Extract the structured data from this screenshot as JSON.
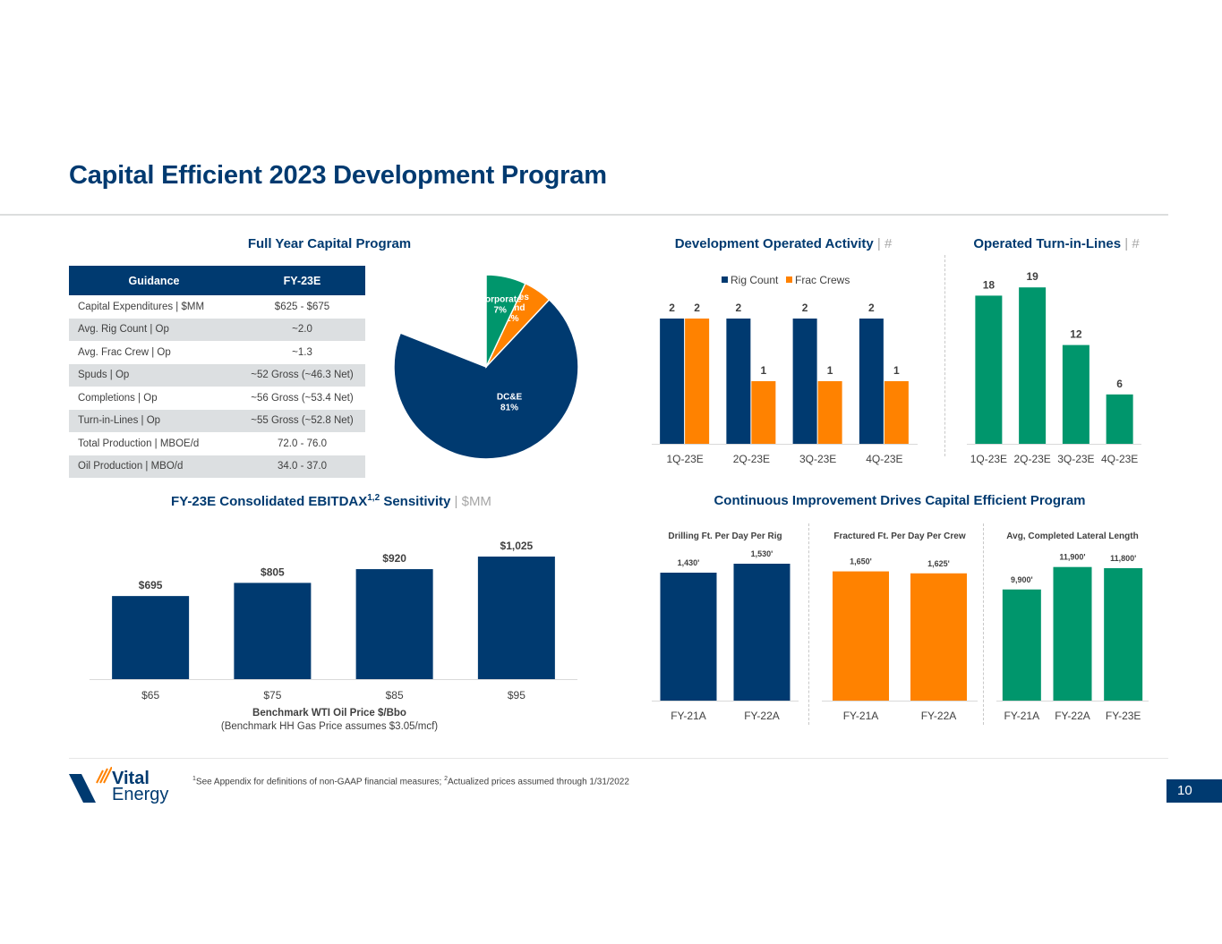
{
  "page": {
    "title": "Capital Efficient 2023 Development Program",
    "page_number": "10",
    "footnote": {
      "sup1": "1",
      "text1": "See Appendix for definitions of non-GAAP financial measures; ",
      "sup2": "2",
      "text2": "Actualized prices assumed through 1/31/2022"
    },
    "logo": {
      "line1": "Vital",
      "line2": "Energy"
    }
  },
  "colors": {
    "navy": "#003A70",
    "orange": "#FF8200",
    "green": "#00966C",
    "table_alt_row": "#DCDFE1",
    "muted": "#A6A6A6"
  },
  "capital_program": {
    "title": "Full Year Capital Program",
    "table": {
      "headers": [
        "Guidance",
        "FY-23E"
      ],
      "rows": [
        {
          "label": "Capital Expenditures | $MM",
          "value": "$625 - $675"
        },
        {
          "label": "Avg. Rig Count | Op",
          "value": "~2.0"
        },
        {
          "label": "Avg. Frac Crew | Op",
          "value": "~1.3"
        },
        {
          "label": "Spuds | Op",
          "value": "~52 Gross (~46.3 Net)"
        },
        {
          "label": "Completions | Op",
          "value": "~56 Gross (~53.4 Net)"
        },
        {
          "label": "Turn-in-Lines | Op",
          "value": "~55 Gross (~52.8 Net)"
        },
        {
          "label": "Total Production | MBOE/d",
          "value": "72.0 - 76.0"
        },
        {
          "label": "Oil Production | MBO/d",
          "value": "34.0 - 37.0"
        }
      ]
    }
  },
  "chart_data": [
    {
      "id": "capital-pie",
      "type": "pie",
      "title": "Full Year Capital Program",
      "slices": [
        {
          "label": "DC&E",
          "label_lines": [
            "DC&E",
            "81%"
          ],
          "value": 81,
          "color": "#003A70"
        },
        {
          "label": "Facilities & Land",
          "label_lines": [
            "Facilities",
            "& Land",
            "12%"
          ],
          "value": 12,
          "color": "#FF8200"
        },
        {
          "label": "Corporate",
          "label_lines": [
            "Corporate",
            "7%"
          ],
          "value": 7,
          "color": "#00966C"
        }
      ]
    },
    {
      "id": "dev-activity",
      "type": "bar",
      "title": "Development Operated Activity",
      "title_unit": "| #",
      "categories": [
        "1Q-23E",
        "2Q-23E",
        "3Q-23E",
        "4Q-23E"
      ],
      "series": [
        {
          "name": "Rig Count",
          "values": [
            2,
            2,
            2,
            2
          ],
          "color": "#003A70"
        },
        {
          "name": "Frac Crews",
          "values": [
            2,
            1,
            1,
            1
          ],
          "color": "#FF8200"
        }
      ],
      "ylim": [
        0,
        2.3
      ],
      "legend": "top"
    },
    {
      "id": "turn-in-lines",
      "type": "bar",
      "title": "Operated Turn-in-Lines",
      "title_unit": "| #",
      "categories": [
        "1Q-23E",
        "2Q-23E",
        "3Q-23E",
        "4Q-23E"
      ],
      "values": [
        18,
        19,
        12,
        6
      ],
      "color": "#00966C",
      "ylim": [
        0,
        20
      ]
    },
    {
      "id": "ebitdax",
      "type": "bar",
      "title": "FY-23E Consolidated EBITDAX",
      "title_sup": "1,2",
      "title_rest": "Sensitivity",
      "title_unit": "| $MM",
      "categories": [
        "$65",
        "$75",
        "$85",
        "$95"
      ],
      "values": [
        695,
        805,
        920,
        1025
      ],
      "labels": [
        "$695",
        "$805",
        "$920",
        "$1,025"
      ],
      "color": "#003A70",
      "xlabel": "Benchmark WTI Oil Price $/Bbo",
      "xlabel_sub": "(Benchmark HH Gas Price assumes $3.05/mcf)",
      "ylim": [
        0,
        1100
      ]
    },
    {
      "id": "drilling-ft",
      "type": "bar",
      "section_title": "Continuous Improvement Drives Capital Efficient Program",
      "title": "Drilling Ft. Per Day Per Rig",
      "categories": [
        "FY-21A",
        "FY-22A"
      ],
      "values": [
        1430,
        1530
      ],
      "labels": [
        "1,430'",
        "1,530'"
      ],
      "color": "#003A70",
      "ylim": [
        0,
        1650
      ]
    },
    {
      "id": "frac-ft",
      "type": "bar",
      "title": "Fractured Ft. Per Day Per Crew",
      "categories": [
        "FY-21A",
        "FY-22A"
      ],
      "values": [
        1650,
        1625
      ],
      "labels": [
        "1,650'",
        "1,625'"
      ],
      "color": "#FF8200",
      "ylim": [
        0,
        1885
      ]
    },
    {
      "id": "lateral-length",
      "type": "bar",
      "title": "Avg, Completed Lateral Length",
      "categories": [
        "FY-21A",
        "FY-22A",
        "FY-23E"
      ],
      "values": [
        9900,
        11900,
        11800
      ],
      "labels": [
        "9,900'",
        "11,900'",
        "11,800'"
      ],
      "color": "#00966C",
      "ylim": [
        0,
        13150
      ]
    }
  ]
}
